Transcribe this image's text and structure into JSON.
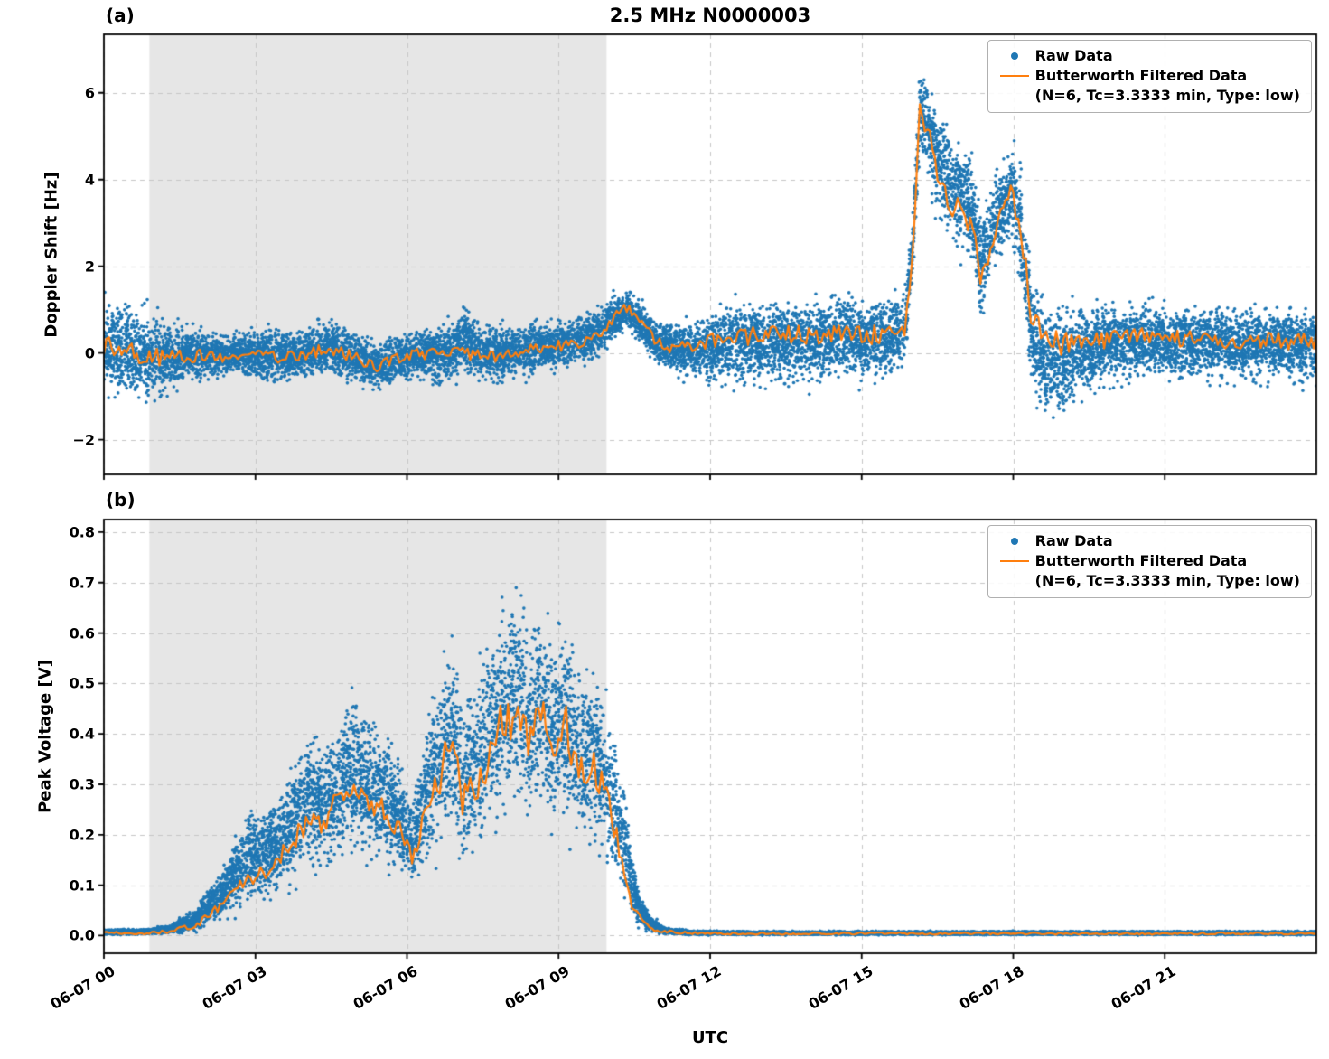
{
  "figure": {
    "xlabel": "UTC",
    "x_range_hours": [
      0,
      24
    ],
    "xtick_hours": [
      0,
      3,
      6,
      9,
      12,
      15,
      18,
      21
    ],
    "xtick_labels": [
      "06-07 00",
      "06-07 03",
      "06-07 06",
      "06-07 09",
      "06-07 12",
      "06-07 15",
      "06-07 18",
      "06-07 21"
    ],
    "shaded_span_hours": [
      0.9,
      9.95
    ],
    "colors": {
      "raw": "#1f77b4",
      "filtered": "#ff7f0e",
      "shade": "#e6e6e6",
      "grid": "#c6c6c6",
      "spine": "#000000"
    }
  },
  "legend": {
    "raw_label": "Raw Data",
    "filtered_label": "Butterworth Filtered Data",
    "filtered_sublabel": "(N=6, Tc=3.3333 min, Type: low)"
  },
  "chart_data": [
    {
      "type": "scatter",
      "panel_label": "(a)",
      "title": "2.5 MHz N0000003",
      "ylabel": "Doppler Shift [Hz]",
      "ylim": [
        -2.8,
        7.35
      ],
      "yticks": [
        [
          -2,
          "−2"
        ],
        [
          0,
          "0"
        ],
        [
          2,
          "2"
        ],
        [
          4,
          "4"
        ],
        [
          6,
          "6"
        ]
      ],
      "series": [
        {
          "name": "Raw Data",
          "style": "scatter"
        },
        {
          "name": "Butterworth Filtered Data (N=6, Tc=3.3333 min, Type: low)",
          "style": "line"
        }
      ],
      "profile_columns": [
        "hour_utc",
        "filtered_value_hz",
        "scatter_min_hz",
        "scatter_max_hz"
      ],
      "profile": [
        [
          0.0,
          0.15,
          -1.3,
          1.7
        ],
        [
          0.4,
          0.05,
          -1.5,
          1.8
        ],
        [
          0.8,
          -0.05,
          -1.7,
          1.5
        ],
        [
          1.2,
          -0.1,
          -1.3,
          1.1
        ],
        [
          1.6,
          -0.1,
          -1.0,
          0.9
        ],
        [
          2.0,
          -0.05,
          -0.9,
          0.8
        ],
        [
          2.4,
          -0.1,
          -0.8,
          0.7
        ],
        [
          2.8,
          -0.05,
          -0.85,
          0.75
        ],
        [
          3.2,
          -0.1,
          -0.9,
          0.8
        ],
        [
          3.6,
          -0.1,
          -0.85,
          0.75
        ],
        [
          4.0,
          -0.05,
          -0.8,
          0.8
        ],
        [
          4.4,
          0.1,
          -0.75,
          1.05
        ],
        [
          4.7,
          0.0,
          -0.8,
          0.85
        ],
        [
          5.0,
          -0.1,
          -0.9,
          0.7
        ],
        [
          5.4,
          -0.3,
          -1.15,
          0.5
        ],
        [
          5.7,
          -0.15,
          -1.0,
          0.6
        ],
        [
          6.0,
          -0.05,
          -0.85,
          0.75
        ],
        [
          6.4,
          0.0,
          -0.9,
          0.85
        ],
        [
          6.8,
          -0.05,
          -0.95,
          0.9
        ],
        [
          7.1,
          0.0,
          -0.9,
          1.55
        ],
        [
          7.4,
          0.0,
          -0.85,
          0.95
        ],
        [
          7.8,
          -0.1,
          -0.95,
          0.8
        ],
        [
          8.2,
          0.0,
          -0.8,
          0.85
        ],
        [
          8.6,
          0.1,
          -0.7,
          0.95
        ],
        [
          9.0,
          0.15,
          -0.6,
          1.0
        ],
        [
          9.4,
          0.25,
          -0.5,
          1.1
        ],
        [
          9.8,
          0.45,
          -0.3,
          1.25
        ],
        [
          10.1,
          0.85,
          0.1,
          1.55
        ],
        [
          10.35,
          1.05,
          0.35,
          1.65
        ],
        [
          10.6,
          0.75,
          0.05,
          1.45
        ],
        [
          10.9,
          0.3,
          -0.5,
          1.05
        ],
        [
          11.3,
          0.1,
          -0.75,
          0.95
        ],
        [
          11.7,
          0.15,
          -0.9,
          1.1
        ],
        [
          12.1,
          0.3,
          -1.05,
          1.35
        ],
        [
          12.5,
          0.4,
          -1.15,
          1.55
        ],
        [
          13.0,
          0.4,
          -1.1,
          1.6
        ],
        [
          13.5,
          0.45,
          -1.05,
          1.65
        ],
        [
          14.0,
          0.4,
          -1.1,
          1.6
        ],
        [
          14.5,
          0.45,
          -1.0,
          1.75
        ],
        [
          15.0,
          0.4,
          -1.1,
          1.65
        ],
        [
          15.5,
          0.45,
          -1.0,
          1.8
        ],
        [
          15.85,
          0.5,
          -0.8,
          1.85
        ],
        [
          16.0,
          2.2,
          1.0,
          3.5
        ],
        [
          16.15,
          5.6,
          4.3,
          7.05
        ],
        [
          16.3,
          5.2,
          3.6,
          6.9
        ],
        [
          16.5,
          4.2,
          2.6,
          6.2
        ],
        [
          16.75,
          3.4,
          2.0,
          5.6
        ],
        [
          17.0,
          3.3,
          1.9,
          5.5
        ],
        [
          17.2,
          2.9,
          1.4,
          4.9
        ],
        [
          17.35,
          1.5,
          0.2,
          3.9
        ],
        [
          17.5,
          2.2,
          0.9,
          4.3
        ],
        [
          17.7,
          3.1,
          1.7,
          4.8
        ],
        [
          17.95,
          3.7,
          2.2,
          5.2
        ],
        [
          18.15,
          3.0,
          1.0,
          5.0
        ],
        [
          18.35,
          0.9,
          -1.3,
          2.3
        ],
        [
          18.6,
          0.3,
          -2.3,
          1.8
        ],
        [
          19.0,
          0.2,
          -1.9,
          1.5
        ],
        [
          19.4,
          0.3,
          -1.4,
          1.45
        ],
        [
          19.8,
          0.3,
          -1.1,
          1.5
        ],
        [
          20.2,
          0.35,
          -1.0,
          1.5
        ],
        [
          20.6,
          0.4,
          -0.95,
          1.55
        ],
        [
          21.0,
          0.35,
          -1.05,
          1.45
        ],
        [
          21.4,
          0.3,
          -0.95,
          1.4
        ],
        [
          21.8,
          0.35,
          -1.0,
          1.45
        ],
        [
          22.2,
          0.3,
          -0.95,
          1.4
        ],
        [
          22.6,
          0.3,
          -1.0,
          1.45
        ],
        [
          23.0,
          0.3,
          -1.0,
          1.4
        ],
        [
          23.4,
          0.25,
          -0.95,
          1.35
        ],
        [
          24.0,
          0.3,
          -1.0,
          1.4
        ]
      ]
    },
    {
      "type": "scatter",
      "panel_label": "(b)",
      "title": "",
      "ylabel": "Peak Voltage [V]",
      "ylim": [
        -0.035,
        0.825
      ],
      "yticks": [
        [
          0.0,
          "0.0"
        ],
        [
          0.1,
          "0.1"
        ],
        [
          0.2,
          "0.2"
        ],
        [
          0.3,
          "0.3"
        ],
        [
          0.4,
          "0.4"
        ],
        [
          0.5,
          "0.5"
        ],
        [
          0.6,
          "0.6"
        ],
        [
          0.7,
          "0.7"
        ],
        [
          0.8,
          "0.8"
        ]
      ],
      "series": [
        {
          "name": "Raw Data",
          "style": "scatter"
        },
        {
          "name": "Butterworth Filtered Data (N=6, Tc=3.3333 min, Type: low)",
          "style": "line"
        }
      ],
      "profile_columns": [
        "hour_utc",
        "filtered_value_v",
        "scatter_min_v",
        "scatter_max_v"
      ],
      "profile": [
        [
          0.0,
          0.005,
          0.0,
          0.015
        ],
        [
          0.8,
          0.005,
          0.0,
          0.015
        ],
        [
          1.3,
          0.008,
          0.0,
          0.025
        ],
        [
          1.8,
          0.02,
          0.0,
          0.06
        ],
        [
          2.2,
          0.05,
          0.01,
          0.13
        ],
        [
          2.6,
          0.1,
          0.02,
          0.22
        ],
        [
          2.9,
          0.12,
          0.03,
          0.3
        ],
        [
          3.2,
          0.13,
          0.04,
          0.28
        ],
        [
          3.5,
          0.16,
          0.05,
          0.33
        ],
        [
          3.8,
          0.2,
          0.07,
          0.4
        ],
        [
          4.1,
          0.22,
          0.08,
          0.44
        ],
        [
          4.4,
          0.23,
          0.09,
          0.42
        ],
        [
          4.7,
          0.27,
          0.1,
          0.5
        ],
        [
          4.9,
          0.28,
          0.11,
          0.56
        ],
        [
          5.2,
          0.26,
          0.1,
          0.5
        ],
        [
          5.5,
          0.25,
          0.1,
          0.46
        ],
        [
          5.8,
          0.22,
          0.08,
          0.42
        ],
        [
          6.1,
          0.15,
          0.05,
          0.3
        ],
        [
          6.4,
          0.24,
          0.09,
          0.48
        ],
        [
          6.7,
          0.33,
          0.13,
          0.6
        ],
        [
          6.9,
          0.4,
          0.15,
          0.65
        ],
        [
          7.1,
          0.26,
          0.08,
          0.52
        ],
        [
          7.35,
          0.3,
          0.1,
          0.58
        ],
        [
          7.6,
          0.35,
          0.14,
          0.64
        ],
        [
          7.9,
          0.44,
          0.18,
          0.72
        ],
        [
          8.15,
          0.42,
          0.18,
          0.79
        ],
        [
          8.4,
          0.38,
          0.15,
          0.7
        ],
        [
          8.65,
          0.45,
          0.19,
          0.71
        ],
        [
          8.9,
          0.36,
          0.14,
          0.66
        ],
        [
          9.15,
          0.42,
          0.17,
          0.68
        ],
        [
          9.4,
          0.31,
          0.12,
          0.6
        ],
        [
          9.65,
          0.35,
          0.14,
          0.58
        ],
        [
          9.9,
          0.28,
          0.1,
          0.55
        ],
        [
          10.1,
          0.22,
          0.06,
          0.48
        ],
        [
          10.35,
          0.1,
          0.02,
          0.3
        ],
        [
          10.55,
          0.04,
          0.005,
          0.12
        ],
        [
          10.8,
          0.015,
          0.0,
          0.05
        ],
        [
          11.1,
          0.008,
          0.0,
          0.02
        ],
        [
          11.6,
          0.005,
          0.0,
          0.012
        ],
        [
          12.5,
          0.004,
          0.0,
          0.01
        ],
        [
          14.0,
          0.004,
          0.0,
          0.01
        ],
        [
          16.0,
          0.004,
          0.0,
          0.01
        ],
        [
          18.0,
          0.004,
          0.0,
          0.01
        ],
        [
          20.0,
          0.004,
          0.0,
          0.01
        ],
        [
          22.0,
          0.004,
          0.0,
          0.01
        ],
        [
          24.0,
          0.004,
          0.0,
          0.01
        ]
      ]
    }
  ]
}
